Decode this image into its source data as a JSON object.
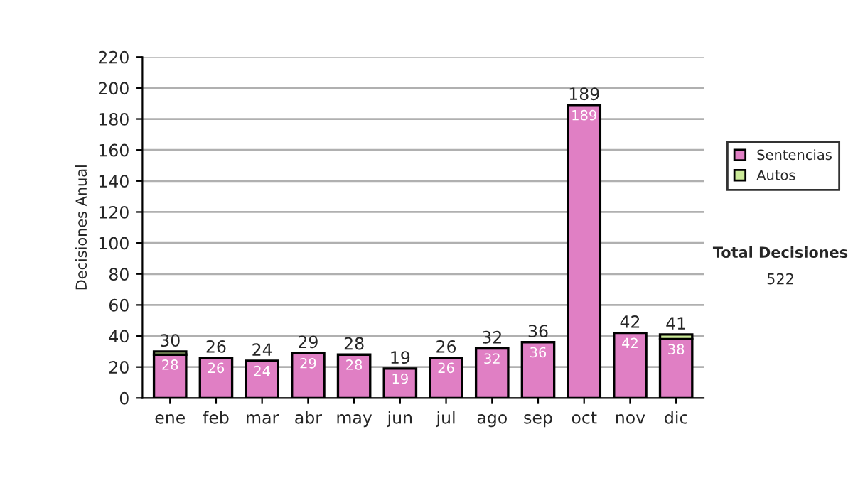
{
  "chart_data": {
    "type": "bar",
    "stacked": true,
    "ylabel": "Decisiones Anual",
    "categories": [
      "ene",
      "feb",
      "mar",
      "abr",
      "may",
      "jun",
      "jul",
      "ago",
      "sep",
      "oct",
      "nov",
      "dic"
    ],
    "series": [
      {
        "name": "Sentencias",
        "color": "#e07fc4",
        "values": [
          28,
          26,
          24,
          29,
          28,
          19,
          26,
          32,
          36,
          189,
          42,
          38
        ],
        "value_labels": [
          "28",
          "26",
          "24",
          "29",
          "28",
          "19",
          "26",
          "32",
          "36",
          "189",
          "42",
          "38"
        ]
      },
      {
        "name": "Autos",
        "color": "#cceb99",
        "values": [
          2,
          null,
          null,
          null,
          null,
          null,
          null,
          null,
          null,
          null,
          null,
          3
        ]
      }
    ],
    "totals": [
      "30",
      "26",
      "24",
      "29",
      "28",
      "19",
      "26",
      "32",
      "36",
      "189",
      "42",
      "41"
    ],
    "ylim": [
      0,
      220
    ],
    "yticks": [
      0,
      20,
      40,
      60,
      80,
      100,
      120,
      140,
      160,
      180,
      200,
      220
    ],
    "grid": "y",
    "legend": "right",
    "annotations": [
      "Total Decisiones",
      "522"
    ]
  }
}
